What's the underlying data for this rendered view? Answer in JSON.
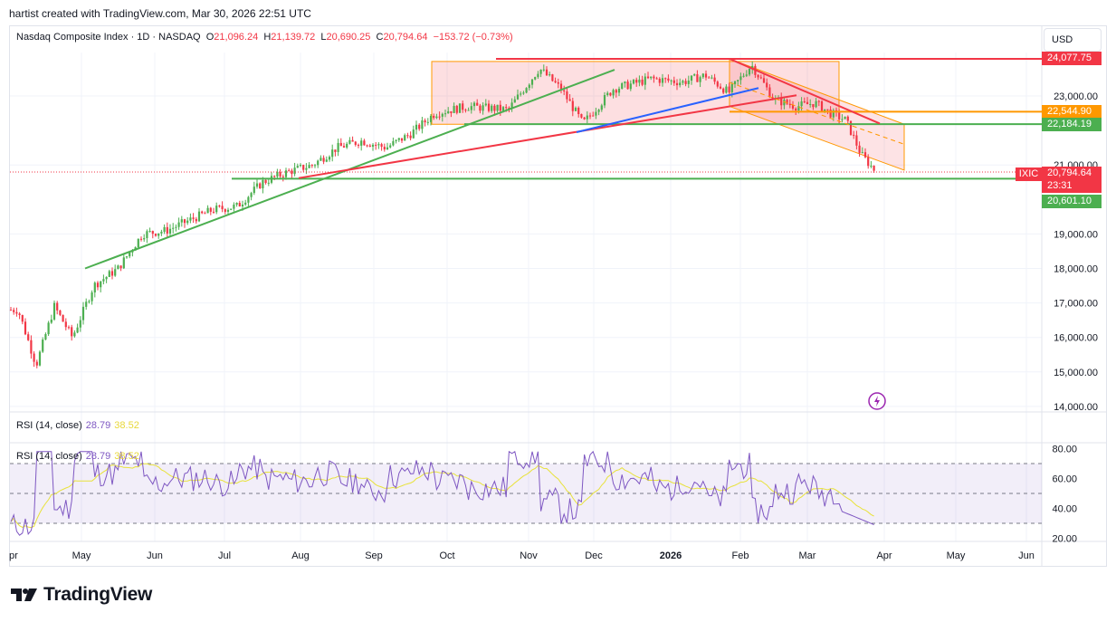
{
  "header": {
    "attribution": "hartist created with TradingView.com, Mar 30, 2026 22:51 UTC"
  },
  "instrument": {
    "title": "Nasdaq Composite Index · 1D · NASDAQ",
    "open_label": "O",
    "open": "21,096.24",
    "high_label": "H",
    "high": "21,139.72",
    "low_label": "L",
    "low": "20,690.25",
    "close_label": "C",
    "close": "20,794.64",
    "change": "−153.72 (−0.73%)"
  },
  "price_axis": {
    "currency": "USD",
    "ticks": [
      "23,000.00",
      "21,000.00",
      "19,000.00",
      "18,000.00",
      "17,000.00",
      "16,000.00",
      "15,000.00",
      "14,000.00"
    ],
    "tick_values": [
      23000,
      21000,
      19000,
      18000,
      17000,
      16000,
      15000,
      14000
    ],
    "tags": [
      {
        "label": "24,077.75",
        "value": 24077.75,
        "color": "#f23645"
      },
      {
        "label": "22,544.90",
        "value": 22544.9,
        "color": "#ff9800"
      },
      {
        "label": "22,184.19",
        "value": 22184.19,
        "color": "#4caf50"
      },
      {
        "label": "20,794.64",
        "value": 20794.64,
        "color": "#f23645"
      },
      {
        "label": "23:31",
        "value": 20580,
        "color": "#f23645"
      },
      {
        "label": "20,601.10",
        "value": 20601.1,
        "color": "#4caf50"
      }
    ],
    "ticker_tag": "IXIC"
  },
  "rsi_panels": [
    {
      "title": "RSI (14, close)",
      "rsi": "28.79",
      "ma": "38.52"
    },
    {
      "title": "RSI (14, close)",
      "rsi": "28.79",
      "ma": "38.52"
    }
  ],
  "rsi_axis": {
    "ticks": [
      "80.00",
      "60.00",
      "40.00",
      "20.00"
    ],
    "tick_values": [
      80,
      60,
      40,
      20
    ]
  },
  "time_axis": {
    "labels": [
      "pr",
      "May",
      "Jun",
      "Jul",
      "Aug",
      "Sep",
      "Oct",
      "Nov",
      "Dec",
      "2026",
      "Feb",
      "Mar",
      "Apr",
      "May",
      "Jun"
    ]
  },
  "brand": {
    "name": "TradingView"
  },
  "colors": {
    "up": "#4caf50",
    "down": "#f23645",
    "rsi": "#7e57c2",
    "rsi_ma": "#e8e23a",
    "band": "#ede7f6"
  },
  "chart_data": {
    "type": "candlestick",
    "title": "Nasdaq Composite Index · 1D · NASDAQ",
    "ylim": [
      13900,
      24700
    ],
    "close_path_anchors": [
      [
        "Apr",
        16800
      ],
      [
        "Apr",
        15200
      ],
      [
        "Apr",
        16900
      ],
      [
        "Apr",
        16000
      ],
      [
        "May",
        17500
      ],
      [
        "May",
        18000
      ],
      [
        "May",
        19000
      ],
      [
        "Jun",
        19100
      ],
      [
        "Jun",
        19400
      ],
      [
        "Jun",
        19700
      ],
      [
        "Jul",
        19800
      ],
      [
        "Jul",
        20500
      ],
      [
        "Jul",
        20800
      ],
      [
        "Aug",
        21000
      ],
      [
        "Aug",
        21500
      ],
      [
        "Aug",
        21700
      ],
      [
        "Sep",
        21500
      ],
      [
        "Sep",
        21900
      ],
      [
        "Sep",
        22500
      ],
      [
        "Oct",
        22700
      ],
      [
        "Oct",
        22600
      ],
      [
        "Nov",
        23800
      ],
      [
        "Nov",
        23200
      ],
      [
        "Nov",
        22200
      ],
      [
        "Dec",
        23200
      ],
      [
        "Dec",
        23500
      ],
      [
        "Jan",
        23400
      ],
      [
        "Jan",
        23600
      ],
      [
        "Jan",
        23100
      ],
      [
        "Feb",
        23900
      ],
      [
        "Feb",
        22900
      ],
      [
        "Feb",
        22700
      ],
      [
        "Mar",
        22800
      ],
      [
        "Mar",
        22500
      ],
      [
        "Mar",
        22300
      ],
      [
        "Mar",
        21300
      ],
      [
        "Mar",
        20794.64
      ]
    ],
    "horizontal_levels": [
      24077.75,
      22544.9,
      22184.19,
      20601.1
    ],
    "rsi": {
      "last": 28.79,
      "ma_last": 38.52,
      "bands": [
        70,
        50,
        30
      ]
    }
  }
}
